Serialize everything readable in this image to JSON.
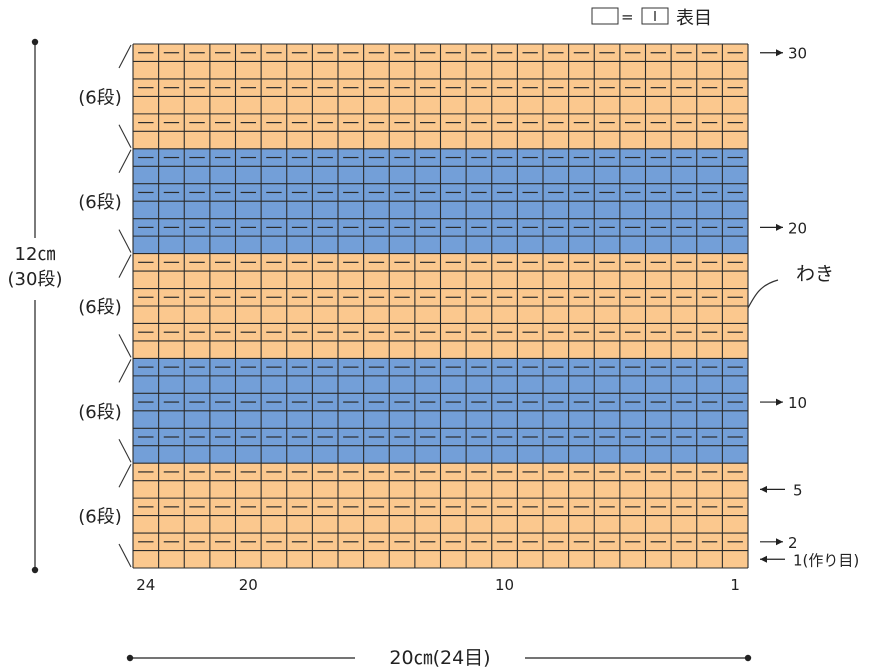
{
  "legend": {
    "equals": "=",
    "symbol_name": "knit-symbol-icon",
    "label": "表目"
  },
  "height_label": {
    "size": "12㎝",
    "rows": "(30段)"
  },
  "width_label": "20㎝(24目)",
  "band_labels": [
    "(6段)",
    "(6段)",
    "(6段)",
    "(6段)",
    "(6段)"
  ],
  "side_label": "わき",
  "row_markers": [
    {
      "text": "30",
      "row": 30,
      "direction": "right"
    },
    {
      "text": "20",
      "row": 20,
      "direction": "right"
    },
    {
      "text": "10",
      "row": 10,
      "direction": "right"
    },
    {
      "text": "5",
      "row": 5,
      "direction": "left"
    },
    {
      "text": "2",
      "row": 2,
      "direction": "right"
    },
    {
      "text": "1(作り目)",
      "row": 1,
      "direction": "left"
    }
  ],
  "stitch_labels": [
    {
      "text": "24",
      "stitch": 24
    },
    {
      "text": "20",
      "stitch": 20
    },
    {
      "text": "10",
      "stitch": 10
    },
    {
      "text": "1",
      "stitch": 1
    }
  ],
  "grid": {
    "stitches": 24,
    "rows": 30,
    "bands": [
      {
        "from_row": 1,
        "to_row": 6,
        "color": "#fbc88e"
      },
      {
        "from_row": 7,
        "to_row": 12,
        "color": "#739fd8"
      },
      {
        "from_row": 13,
        "to_row": 18,
        "color": "#fbc88e"
      },
      {
        "from_row": 19,
        "to_row": 24,
        "color": "#739fd8"
      },
      {
        "from_row": 25,
        "to_row": 30,
        "color": "#fbc88e"
      }
    ],
    "line_color": "#2b2b2b"
  }
}
